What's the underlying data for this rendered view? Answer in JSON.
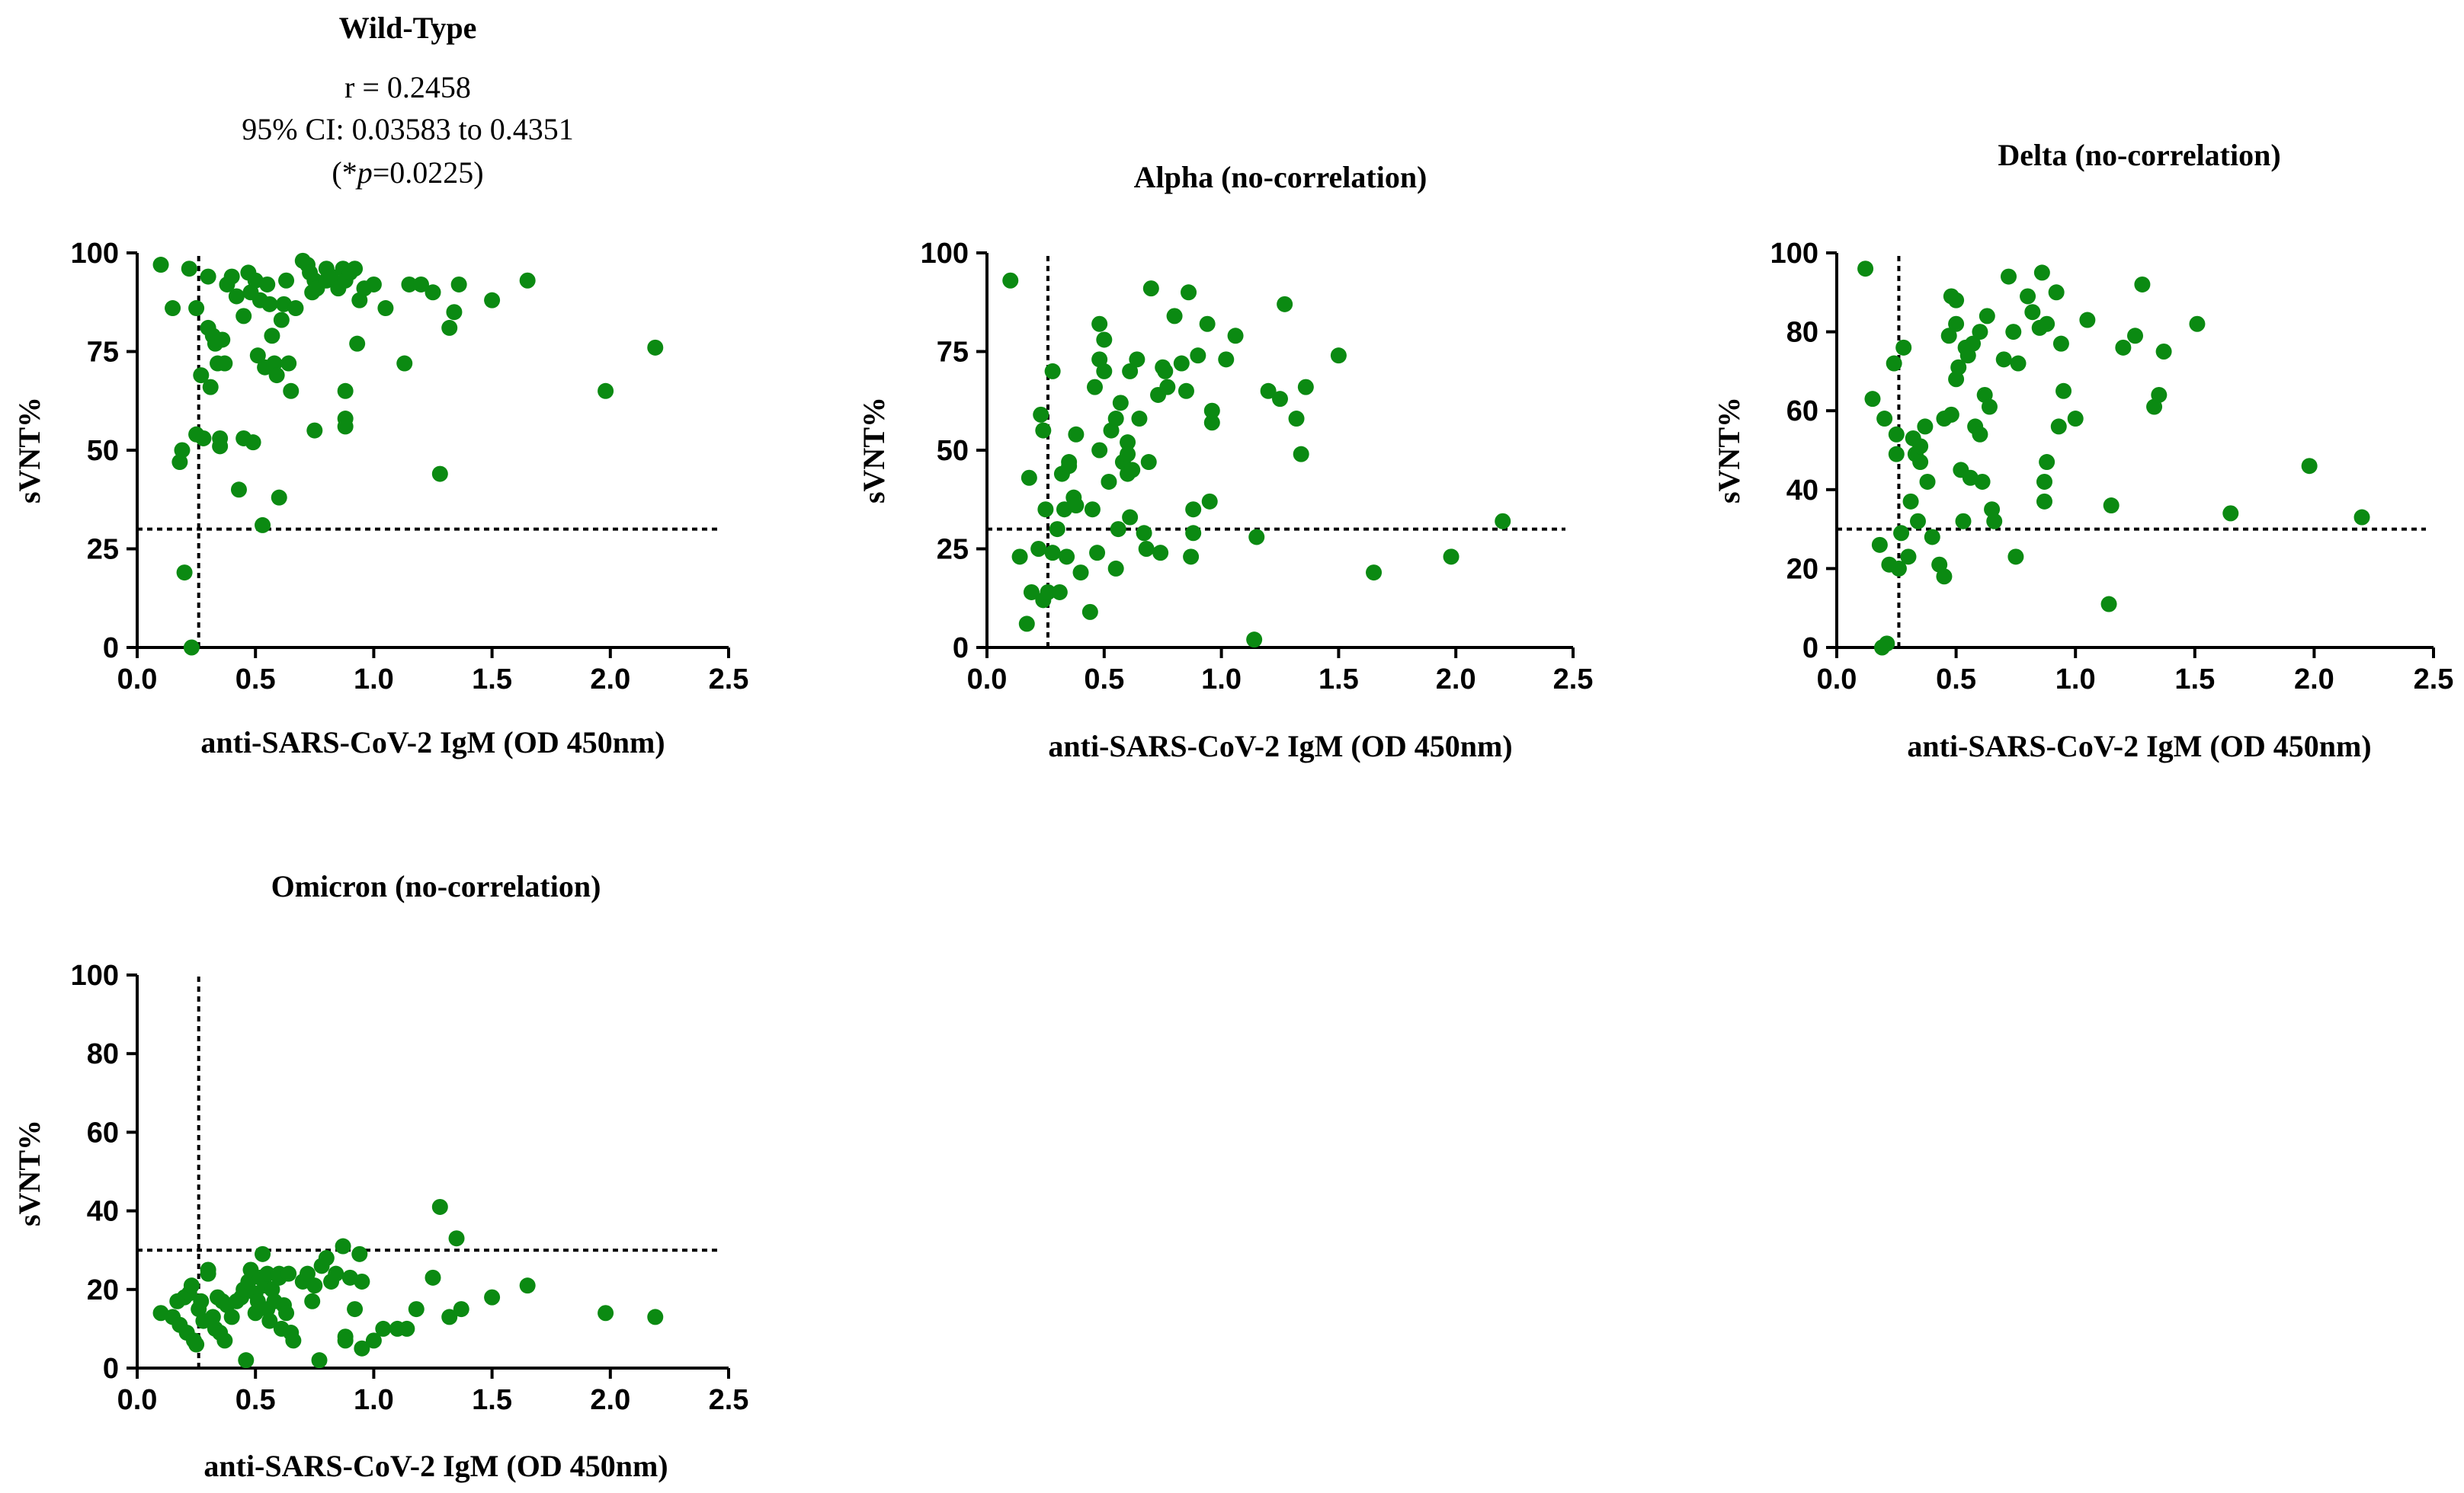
{
  "figure": {
    "marker_color": "#0b8a12",
    "axis_color": "#000000"
  },
  "chart_data": [
    {
      "id": "wild-type",
      "type": "scatter",
      "title": "Wild-Type",
      "stats": {
        "r": "r = 0.2458",
        "ci": "95% CI: 0.03583 to 0.4351",
        "p_open": "(*",
        "p_italic": "p",
        "p_close": "=0.0225)"
      },
      "xlabel": "anti-SARS-CoV-2 IgM  (OD 450nm)",
      "ylabel": "sVNT%",
      "xlim": [
        0,
        2.5
      ],
      "ylim": [
        0,
        100
      ],
      "xticks": [
        0,
        0.5,
        1,
        1.5,
        2,
        2.5
      ],
      "xtick_labels": [
        "0.0",
        "0.5",
        "1.0",
        "1.5",
        "2.0",
        "2.5"
      ],
      "yticks": [
        0,
        25,
        50,
        75,
        100
      ],
      "ytick_labels": [
        "0",
        "25",
        "50",
        "75",
        "100"
      ],
      "cutoff_x": 0.26,
      "cutoff_y": 30,
      "points": [
        [
          0.1,
          97
        ],
        [
          0.15,
          86
        ],
        [
          0.18,
          47
        ],
        [
          0.19,
          50
        ],
        [
          0.2,
          19
        ],
        [
          0.22,
          96
        ],
        [
          0.23,
          0
        ],
        [
          0.25,
          54
        ],
        [
          0.25,
          86
        ],
        [
          0.27,
          69
        ],
        [
          0.28,
          53
        ],
        [
          0.3,
          94
        ],
        [
          0.3,
          81
        ],
        [
          0.31,
          66
        ],
        [
          0.32,
          79
        ],
        [
          0.33,
          77
        ],
        [
          0.34,
          72
        ],
        [
          0.35,
          53
        ],
        [
          0.35,
          51
        ],
        [
          0.36,
          78
        ],
        [
          0.37,
          72
        ],
        [
          0.38,
          92
        ],
        [
          0.4,
          94
        ],
        [
          0.42,
          89
        ],
        [
          0.43,
          40
        ],
        [
          0.45,
          53
        ],
        [
          0.45,
          84
        ],
        [
          0.47,
          95
        ],
        [
          0.48,
          90
        ],
        [
          0.49,
          52
        ],
        [
          0.5,
          93
        ],
        [
          0.51,
          74
        ],
        [
          0.52,
          88
        ],
        [
          0.53,
          31
        ],
        [
          0.54,
          71
        ],
        [
          0.55,
          92
        ],
        [
          0.56,
          87
        ],
        [
          0.57,
          79
        ],
        [
          0.58,
          72
        ],
        [
          0.59,
          69
        ],
        [
          0.6,
          38
        ],
        [
          0.61,
          83
        ],
        [
          0.62,
          87
        ],
        [
          0.63,
          93
        ],
        [
          0.64,
          72
        ],
        [
          0.65,
          65
        ],
        [
          0.67,
          86
        ],
        [
          0.7,
          98
        ],
        [
          0.72,
          97
        ],
        [
          0.73,
          95
        ],
        [
          0.74,
          90
        ],
        [
          0.75,
          55
        ],
        [
          0.75,
          93
        ],
        [
          0.76,
          91
        ],
        [
          0.8,
          96
        ],
        [
          0.8,
          93
        ],
        [
          0.82,
          94
        ],
        [
          0.85,
          91
        ],
        [
          0.87,
          96
        ],
        [
          0.88,
          93
        ],
        [
          0.88,
          65
        ],
        [
          0.88,
          58
        ],
        [
          0.88,
          56
        ],
        [
          0.9,
          95
        ],
        [
          0.92,
          96
        ],
        [
          0.93,
          77
        ],
        [
          0.94,
          88
        ],
        [
          0.96,
          91
        ],
        [
          1.0,
          92
        ],
        [
          1.05,
          86
        ],
        [
          1.13,
          72
        ],
        [
          1.15,
          92
        ],
        [
          1.2,
          92
        ],
        [
          1.25,
          90
        ],
        [
          1.28,
          44
        ],
        [
          1.32,
          81
        ],
        [
          1.34,
          85
        ],
        [
          1.36,
          92
        ],
        [
          1.5,
          88
        ],
        [
          1.65,
          93
        ],
        [
          1.98,
          65
        ],
        [
          2.19,
          76
        ]
      ]
    },
    {
      "id": "alpha",
      "type": "scatter",
      "title": "Alpha  (no-correlation)",
      "xlabel": "anti-SARS-CoV-2 IgM (OD 450nm)",
      "ylabel": "sVNT%",
      "xlim": [
        0,
        2.5
      ],
      "ylim": [
        0,
        100
      ],
      "xticks": [
        0,
        0.5,
        1,
        1.5,
        2,
        2.5
      ],
      "xtick_labels": [
        "0.0",
        "0.5",
        "1.0",
        "1.5",
        "2.0",
        "2.5"
      ],
      "yticks": [
        0,
        25,
        50,
        75,
        100
      ],
      "ytick_labels": [
        "0",
        "25",
        "50",
        "75",
        "100"
      ],
      "cutoff_x": 0.26,
      "cutoff_y": 30,
      "points": [
        [
          0.1,
          93
        ],
        [
          0.14,
          23
        ],
        [
          0.17,
          6
        ],
        [
          0.18,
          43
        ],
        [
          0.19,
          14
        ],
        [
          0.22,
          25
        ],
        [
          0.23,
          59
        ],
        [
          0.24,
          55
        ],
        [
          0.24,
          12
        ],
        [
          0.25,
          35
        ],
        [
          0.26,
          14
        ],
        [
          0.28,
          70
        ],
        [
          0.28,
          24
        ],
        [
          0.3,
          30
        ],
        [
          0.31,
          14
        ],
        [
          0.32,
          44
        ],
        [
          0.33,
          35
        ],
        [
          0.34,
          23
        ],
        [
          0.35,
          47
        ],
        [
          0.35,
          46
        ],
        [
          0.37,
          38
        ],
        [
          0.38,
          54
        ],
        [
          0.38,
          36
        ],
        [
          0.4,
          19
        ],
        [
          0.44,
          9
        ],
        [
          0.45,
          35
        ],
        [
          0.46,
          66
        ],
        [
          0.47,
          24
        ],
        [
          0.48,
          82
        ],
        [
          0.48,
          50
        ],
        [
          0.48,
          73
        ],
        [
          0.5,
          78
        ],
        [
          0.5,
          70
        ],
        [
          0.52,
          42
        ],
        [
          0.53,
          55
        ],
        [
          0.55,
          20
        ],
        [
          0.55,
          58
        ],
        [
          0.56,
          30
        ],
        [
          0.57,
          62
        ],
        [
          0.58,
          47
        ],
        [
          0.6,
          44
        ],
        [
          0.6,
          52
        ],
        [
          0.6,
          49
        ],
        [
          0.61,
          70
        ],
        [
          0.61,
          33
        ],
        [
          0.62,
          45
        ],
        [
          0.64,
          73
        ],
        [
          0.65,
          58
        ],
        [
          0.67,
          29
        ],
        [
          0.68,
          25
        ],
        [
          0.69,
          47
        ],
        [
          0.7,
          91
        ],
        [
          0.73,
          64
        ],
        [
          0.74,
          24
        ],
        [
          0.75,
          71
        ],
        [
          0.76,
          70
        ],
        [
          0.77,
          66
        ],
        [
          0.8,
          84
        ],
        [
          0.83,
          72
        ],
        [
          0.85,
          65
        ],
        [
          0.86,
          90
        ],
        [
          0.87,
          23
        ],
        [
          0.88,
          29
        ],
        [
          0.88,
          35
        ],
        [
          0.9,
          74
        ],
        [
          0.94,
          82
        ],
        [
          0.95,
          37
        ],
        [
          0.96,
          57
        ],
        [
          0.96,
          60
        ],
        [
          1.02,
          73
        ],
        [
          1.06,
          79
        ],
        [
          1.14,
          2
        ],
        [
          1.15,
          28
        ],
        [
          1.2,
          65
        ],
        [
          1.25,
          63
        ],
        [
          1.27,
          87
        ],
        [
          1.32,
          58
        ],
        [
          1.34,
          49
        ],
        [
          1.36,
          66
        ],
        [
          1.5,
          74
        ],
        [
          1.65,
          19
        ],
        [
          1.98,
          23
        ],
        [
          2.2,
          32
        ]
      ]
    },
    {
      "id": "delta",
      "type": "scatter",
      "title": "Delta (no-correlation)",
      "xlabel": "anti-SARS-CoV-2 IgM (OD 450nm)",
      "ylabel": "sVNT%",
      "xlim": [
        0,
        2.5
      ],
      "ylim": [
        0,
        100
      ],
      "xticks": [
        0,
        0.5,
        1,
        1.5,
        2,
        2.5
      ],
      "xtick_labels": [
        "0.0",
        "0.5",
        "1.0",
        "1.5",
        "2.0",
        "2.5"
      ],
      "yticks": [
        0,
        20,
        40,
        60,
        80,
        100
      ],
      "ytick_labels": [
        "0",
        "20",
        "40",
        "60",
        "80",
        "100"
      ],
      "cutoff_x": 0.26,
      "cutoff_y": 30,
      "points": [
        [
          0.12,
          96
        ],
        [
          0.15,
          63
        ],
        [
          0.18,
          26
        ],
        [
          0.19,
          0
        ],
        [
          0.2,
          58
        ],
        [
          0.21,
          1
        ],
        [
          0.22,
          21
        ],
        [
          0.24,
          72
        ],
        [
          0.25,
          49
        ],
        [
          0.25,
          54
        ],
        [
          0.26,
          20
        ],
        [
          0.27,
          29
        ],
        [
          0.28,
          76
        ],
        [
          0.3,
          23
        ],
        [
          0.31,
          37
        ],
        [
          0.32,
          53
        ],
        [
          0.33,
          49
        ],
        [
          0.34,
          32
        ],
        [
          0.35,
          47
        ],
        [
          0.35,
          51
        ],
        [
          0.37,
          56
        ],
        [
          0.38,
          42
        ],
        [
          0.4,
          28
        ],
        [
          0.43,
          21
        ],
        [
          0.45,
          18
        ],
        [
          0.45,
          58
        ],
        [
          0.47,
          79
        ],
        [
          0.48,
          89
        ],
        [
          0.48,
          59
        ],
        [
          0.5,
          88
        ],
        [
          0.5,
          82
        ],
        [
          0.5,
          68
        ],
        [
          0.51,
          71
        ],
        [
          0.52,
          45
        ],
        [
          0.53,
          32
        ],
        [
          0.54,
          76
        ],
        [
          0.55,
          74
        ],
        [
          0.56,
          43
        ],
        [
          0.57,
          77
        ],
        [
          0.58,
          56
        ],
        [
          0.6,
          80
        ],
        [
          0.6,
          54
        ],
        [
          0.61,
          42
        ],
        [
          0.62,
          64
        ],
        [
          0.63,
          84
        ],
        [
          0.64,
          61
        ],
        [
          0.65,
          35
        ],
        [
          0.66,
          32
        ],
        [
          0.7,
          73
        ],
        [
          0.72,
          94
        ],
        [
          0.74,
          80
        ],
        [
          0.75,
          23
        ],
        [
          0.76,
          72
        ],
        [
          0.8,
          89
        ],
        [
          0.82,
          85
        ],
        [
          0.85,
          81
        ],
        [
          0.86,
          95
        ],
        [
          0.87,
          37
        ],
        [
          0.87,
          42
        ],
        [
          0.88,
          47
        ],
        [
          0.88,
          82
        ],
        [
          0.92,
          90
        ],
        [
          0.93,
          56
        ],
        [
          0.94,
          77
        ],
        [
          0.95,
          65
        ],
        [
          1.0,
          58
        ],
        [
          1.05,
          83
        ],
        [
          1.14,
          11
        ],
        [
          1.15,
          36
        ],
        [
          1.2,
          76
        ],
        [
          1.25,
          79
        ],
        [
          1.28,
          92
        ],
        [
          1.33,
          61
        ],
        [
          1.35,
          64
        ],
        [
          1.37,
          75
        ],
        [
          1.51,
          82
        ],
        [
          1.65,
          34
        ],
        [
          1.98,
          46
        ],
        [
          2.2,
          33
        ]
      ]
    },
    {
      "id": "omicron",
      "type": "scatter",
      "title": "Omicron (no-correlation)",
      "xlabel": "anti-SARS-CoV-2 IgM (OD 450nm)",
      "ylabel": "sVNT%",
      "xlim": [
        0,
        2.5
      ],
      "ylim": [
        0,
        100
      ],
      "xticks": [
        0,
        0.5,
        1,
        1.5,
        2,
        2.5
      ],
      "xtick_labels": [
        "0.0",
        "0.5",
        "1.0",
        "1.5",
        "2.0",
        "2.5"
      ],
      "yticks": [
        0,
        20,
        40,
        60,
        80,
        100
      ],
      "ytick_labels": [
        "0",
        "20",
        "40",
        "60",
        "80",
        "100"
      ],
      "cutoff_x": 0.26,
      "cutoff_y": 30,
      "points": [
        [
          0.1,
          14
        ],
        [
          0.15,
          13
        ],
        [
          0.17,
          17
        ],
        [
          0.18,
          11
        ],
        [
          0.2,
          18
        ],
        [
          0.21,
          9
        ],
        [
          0.22,
          19
        ],
        [
          0.23,
          21
        ],
        [
          0.24,
          7
        ],
        [
          0.25,
          6
        ],
        [
          0.26,
          15
        ],
        [
          0.27,
          17
        ],
        [
          0.28,
          12
        ],
        [
          0.3,
          25
        ],
        [
          0.3,
          24
        ],
        [
          0.32,
          13
        ],
        [
          0.33,
          10
        ],
        [
          0.34,
          18
        ],
        [
          0.35,
          9
        ],
        [
          0.36,
          17
        ],
        [
          0.37,
          7
        ],
        [
          0.38,
          16
        ],
        [
          0.4,
          13
        ],
        [
          0.42,
          17
        ],
        [
          0.44,
          18
        ],
        [
          0.45,
          20
        ],
        [
          0.46,
          2
        ],
        [
          0.47,
          22
        ],
        [
          0.48,
          25
        ],
        [
          0.5,
          19
        ],
        [
          0.5,
          14
        ],
        [
          0.51,
          17
        ],
        [
          0.52,
          23
        ],
        [
          0.53,
          29
        ],
        [
          0.54,
          21
        ],
        [
          0.55,
          15
        ],
        [
          0.55,
          24
        ],
        [
          0.56,
          12
        ],
        [
          0.57,
          20
        ],
        [
          0.58,
          17
        ],
        [
          0.6,
          23
        ],
        [
          0.6,
          24
        ],
        [
          0.61,
          10
        ],
        [
          0.62,
          16
        ],
        [
          0.63,
          14
        ],
        [
          0.64,
          24
        ],
        [
          0.65,
          9
        ],
        [
          0.66,
          7
        ],
        [
          0.7,
          22
        ],
        [
          0.72,
          24
        ],
        [
          0.74,
          17
        ],
        [
          0.75,
          21
        ],
        [
          0.77,
          2
        ],
        [
          0.78,
          26
        ],
        [
          0.8,
          28
        ],
        [
          0.82,
          22
        ],
        [
          0.84,
          24
        ],
        [
          0.87,
          31
        ],
        [
          0.88,
          8
        ],
        [
          0.88,
          7
        ],
        [
          0.9,
          23
        ],
        [
          0.92,
          15
        ],
        [
          0.94,
          29
        ],
        [
          0.95,
          5
        ],
        [
          0.95,
          22
        ],
        [
          1.0,
          7
        ],
        [
          1.04,
          10
        ],
        [
          1.1,
          10
        ],
        [
          1.14,
          10
        ],
        [
          1.18,
          15
        ],
        [
          1.25,
          23
        ],
        [
          1.28,
          41
        ],
        [
          1.32,
          13
        ],
        [
          1.35,
          33
        ],
        [
          1.37,
          15
        ],
        [
          1.5,
          18
        ],
        [
          1.65,
          21
        ],
        [
          1.98,
          14
        ],
        [
          2.19,
          13
        ]
      ]
    }
  ]
}
